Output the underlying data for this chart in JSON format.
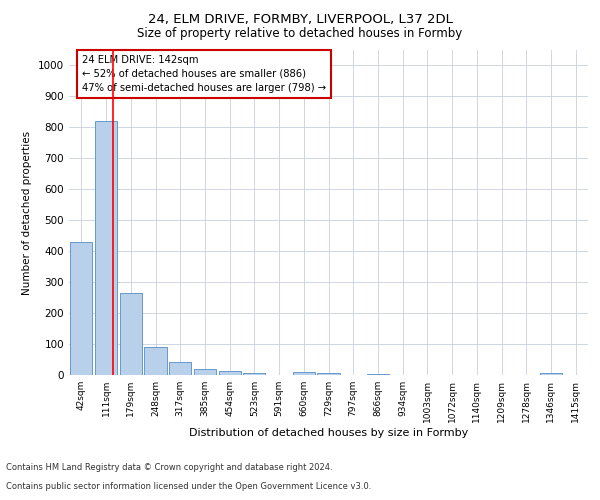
{
  "title1": "24, ELM DRIVE, FORMBY, LIVERPOOL, L37 2DL",
  "title2": "Size of property relative to detached houses in Formby",
  "xlabel": "Distribution of detached houses by size in Formby",
  "ylabel": "Number of detached properties",
  "categories": [
    "42sqm",
    "111sqm",
    "179sqm",
    "248sqm",
    "317sqm",
    "385sqm",
    "454sqm",
    "523sqm",
    "591sqm",
    "660sqm",
    "729sqm",
    "797sqm",
    "866sqm",
    "934sqm",
    "1003sqm",
    "1072sqm",
    "1140sqm",
    "1209sqm",
    "1278sqm",
    "1346sqm",
    "1415sqm"
  ],
  "values": [
    430,
    820,
    265,
    92,
    42,
    18,
    12,
    6,
    0,
    11,
    5,
    0,
    3,
    0,
    0,
    0,
    0,
    0,
    0,
    6,
    0
  ],
  "bar_color": "#b8d0ea",
  "bar_edge_color": "#6699cc",
  "red_line_index": 1.27,
  "annotation_title": "24 ELM DRIVE: 142sqm",
  "annotation_line1": "← 52% of detached houses are smaller (886)",
  "annotation_line2": "47% of semi-detached houses are larger (798) →",
  "annotation_box_color": "#ffffff",
  "annotation_box_edge": "#cc0000",
  "footer1": "Contains HM Land Registry data © Crown copyright and database right 2024.",
  "footer2": "Contains public sector information licensed under the Open Government Licence v3.0.",
  "ylim": [
    0,
    1050
  ],
  "background_color": "#ffffff",
  "grid_color": "#c8d0dc"
}
